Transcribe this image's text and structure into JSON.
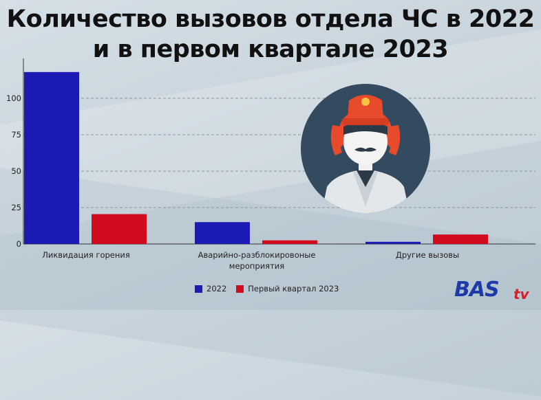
{
  "title": "Количество вызовов отдела ЧС в 2022 и в первом квартале 2023",
  "chart_data": {
    "type": "bar",
    "categories": [
      [
        "Ликвидация горения"
      ],
      [
        "Аварийно-разблокировоные",
        "мероприятия"
      ],
      [
        "Другие вызовы"
      ]
    ],
    "series": [
      {
        "name": "2022",
        "values": [
          118,
          15,
          1.5
        ],
        "color": "#1b1bb4"
      },
      {
        "name": "Первый квартал 2023",
        "values": [
          20.5,
          2.5,
          6.5
        ],
        "color": "#d20a1e"
      }
    ],
    "yticks": [
      "0",
      "25",
      "50",
      "75",
      "100"
    ],
    "ylim": [
      0,
      125
    ],
    "grid": true,
    "legend_position": "bottom"
  },
  "legend": [
    "2022",
    "Первый квартал 2023"
  ],
  "logo": {
    "bas": "BAS",
    "tv": "tv"
  },
  "colors": {
    "bar_2022": "#1b1bb4",
    "bar_2023": "#d20a1e",
    "avatar_bg": "#344a5e",
    "helmet": "#e84a2c"
  }
}
